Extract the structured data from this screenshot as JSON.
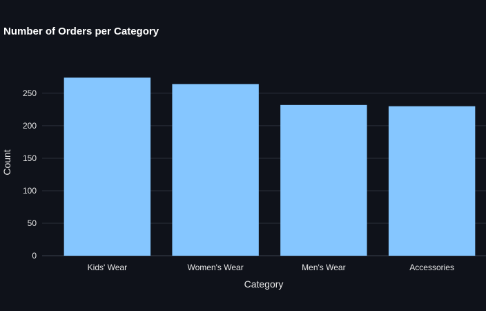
{
  "chart_data": {
    "type": "bar",
    "title": "Number of Orders per Category",
    "xlabel": "Category",
    "ylabel": "Count",
    "categories": [
      "Kids' Wear",
      "Women's Wear",
      "Men's Wear",
      "Accessories"
    ],
    "values": [
      274,
      264,
      232,
      230
    ],
    "ylim": [
      0,
      285
    ],
    "yticks": [
      0,
      50,
      100,
      150,
      200,
      250
    ],
    "grid": true,
    "legend": "none",
    "colors": {
      "background": "#0f121a",
      "bar": "#85c6ff",
      "grid": "#2b303b",
      "text": "#e6e6e6",
      "title": "#ffffff"
    }
  }
}
